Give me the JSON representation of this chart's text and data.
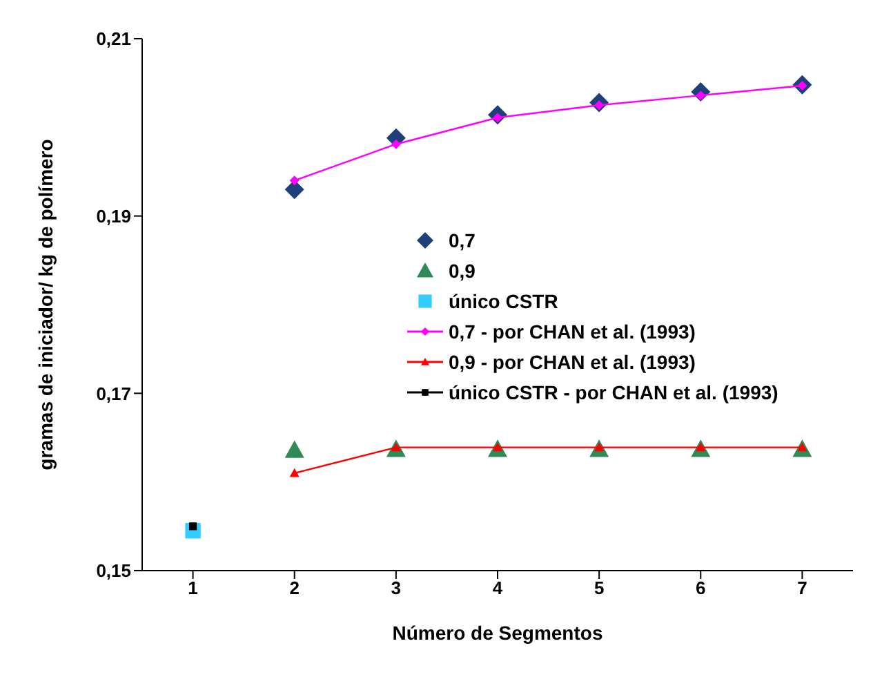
{
  "chart_data": {
    "type": "scatter",
    "xlabel": "Número de Segmentos",
    "ylabel": "gramas de iniciador/ kg de polímero",
    "categories": [
      "1",
      "2",
      "3",
      "4",
      "5",
      "6",
      "7"
    ],
    "ylim": [
      0.15,
      0.21
    ],
    "yticks": [
      {
        "value": 0.15,
        "label": "0,15"
      },
      {
        "value": 0.17,
        "label": "0,17"
      },
      {
        "value": 0.19,
        "label": "0,19"
      },
      {
        "value": 0.21,
        "label": "0,21"
      }
    ],
    "grid": false,
    "legend": "center",
    "series": [
      {
        "name": "0,7",
        "type": "scatter",
        "marker": "diamond",
        "color": "#1f3f7a",
        "values": [
          null,
          0.193,
          0.1988,
          0.2014,
          0.2028,
          0.204,
          0.2048
        ]
      },
      {
        "name": "0,9",
        "type": "scatter",
        "marker": "triangle",
        "color": "#2e8b57",
        "values": [
          null,
          0.1636,
          0.1637,
          0.1637,
          0.1637,
          0.1637,
          0.1637
        ]
      },
      {
        "name": "único CSTR",
        "type": "scatter",
        "marker": "square",
        "color": "#33ccff",
        "values": [
          0.1545,
          null,
          null,
          null,
          null,
          null,
          null
        ]
      },
      {
        "name": "0,7 - por CHAN et al. (1993)",
        "type": "line",
        "marker": "diamond",
        "color": "#ff00ff",
        "values": [
          null,
          0.194,
          0.1981,
          0.2011,
          0.2025,
          0.2036,
          0.2047
        ]
      },
      {
        "name": "0,9 - por CHAN et al. (1993)",
        "type": "line",
        "marker": "triangle",
        "color": "#ff0000",
        "values": [
          null,
          0.161,
          0.1639,
          0.1639,
          0.1639,
          0.1639,
          0.1639
        ]
      },
      {
        "name": "único CSTR - por CHAN et al. (1993)",
        "type": "line",
        "marker": "square",
        "color": "#000000",
        "values": [
          0.155,
          null,
          null,
          null,
          null,
          null,
          null
        ]
      }
    ]
  }
}
